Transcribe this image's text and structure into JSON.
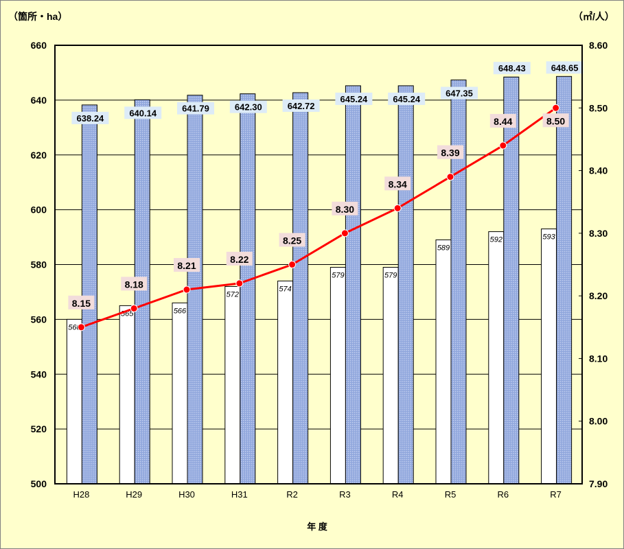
{
  "chart_data": {
    "type": "bar+line",
    "categories": [
      "H28",
      "H29",
      "H30",
      "H31",
      "R2",
      "R3",
      "R4",
      "R5",
      "R6",
      "R7"
    ],
    "series": [
      {
        "name": "箇所",
        "type": "bar",
        "axis": "left",
        "color": "#FFFFFF",
        "values": [
          560,
          565,
          566,
          572,
          574,
          579,
          579,
          589,
          592,
          593
        ]
      },
      {
        "name": "ha",
        "type": "bar",
        "axis": "left",
        "color": "#99AEE0",
        "values": [
          638.24,
          640.14,
          641.79,
          642.3,
          642.72,
          645.24,
          645.24,
          647.35,
          648.43,
          648.65
        ],
        "labels": [
          "638.24",
          "640.14",
          "641.79",
          "642.30",
          "642.72",
          "645.24",
          "645.24",
          "647.35",
          "648.43",
          "648.65"
        ]
      },
      {
        "name": "㎡/人",
        "type": "line",
        "axis": "right",
        "color": "#FF0000",
        "values": [
          8.15,
          8.18,
          8.21,
          8.22,
          8.25,
          8.3,
          8.34,
          8.39,
          8.44,
          8.5
        ],
        "labels": [
          "8.15",
          "8.18",
          "8.21",
          "8.22",
          "8.25",
          "8.30",
          "8.34",
          "8.39",
          "8.44",
          "8.50"
        ]
      }
    ],
    "xlabel": "年 度",
    "ylabel": "（箇所・ha）",
    "y2label": "（㎡/人）",
    "ylim": [
      500,
      660
    ],
    "y2lim": [
      7.9,
      8.6
    ],
    "yticks": [
      "500",
      "520",
      "540",
      "560",
      "580",
      "600",
      "620",
      "640",
      "660"
    ],
    "y2ticks": [
      "7.90",
      "8.00",
      "8.10",
      "8.20",
      "8.30",
      "8.40",
      "8.50",
      "8.60"
    ],
    "grid": true
  }
}
